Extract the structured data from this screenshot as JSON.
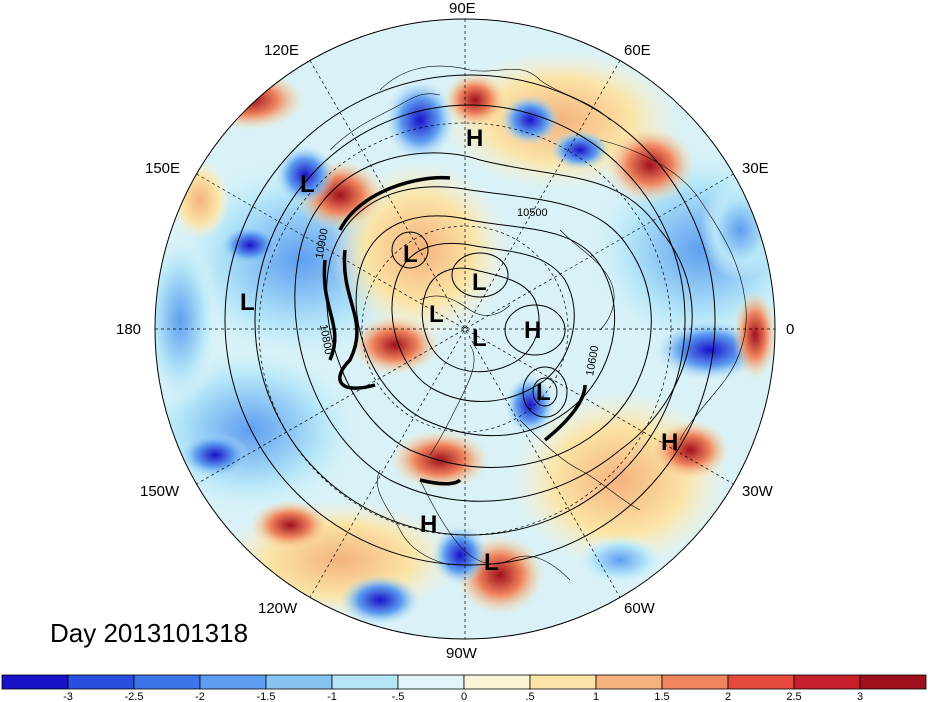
{
  "map": {
    "projection": "north-polar-stereographic",
    "longitude_labels": [
      "90E",
      "60E",
      "30E",
      "0",
      "30W",
      "60W",
      "90W",
      "120W",
      "150W",
      "180",
      "150E",
      "120E"
    ],
    "pressure_systems": [
      "H",
      "L",
      "L",
      "L",
      "L",
      "L",
      "H",
      "L",
      "L",
      "H",
      "H",
      "L"
    ],
    "contour_labels": [
      "10500",
      "10900",
      "10800",
      "10600"
    ],
    "day_label": "Day 2013101318"
  },
  "colorbar": {
    "ticks": [
      "-3",
      "-2.5",
      "-2",
      "-1.5",
      "-1",
      "-.5",
      "0",
      ".5",
      "1",
      "1.5",
      "2",
      "2.5",
      "3"
    ],
    "colors": [
      "#1a12c9",
      "#2a4ee0",
      "#3d74ea",
      "#5e9ef0",
      "#86c4f4",
      "#b4e6f8",
      "#e2f6fa",
      "#fbf5d8",
      "#fbe4a6",
      "#f4b27e",
      "#ef855e",
      "#e64a3c",
      "#c81e2b",
      "#a00f1c"
    ]
  },
  "colors": {
    "cold": "#2a4ee0",
    "warm": "#e64a3c",
    "contour": "#000000"
  }
}
